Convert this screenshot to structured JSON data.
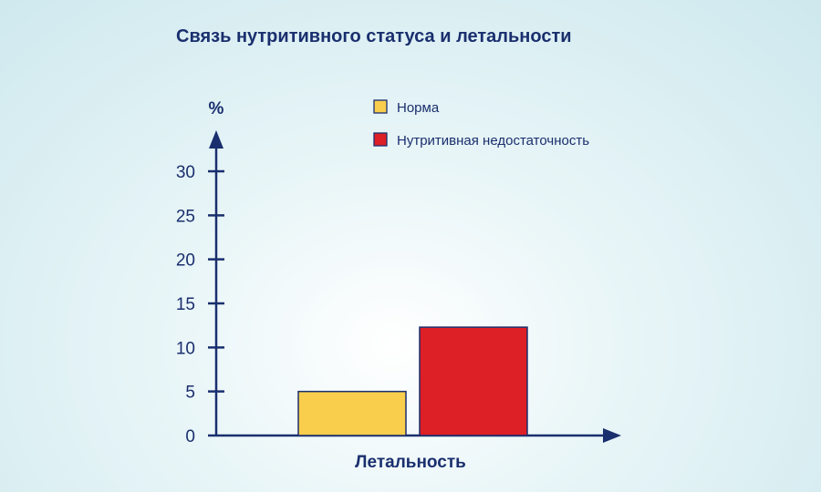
{
  "chart_data": {
    "type": "bar",
    "title": "Связь нутритивного статуса и летальности",
    "xlabel": "Летальность",
    "ylabel": "%",
    "ylim": [
      0,
      30
    ],
    "yticks": [
      0,
      5,
      10,
      15,
      20,
      25,
      30
    ],
    "categories": [
      "Летальность"
    ],
    "series": [
      {
        "name": "Норма",
        "values": [
          5
        ],
        "color": "#f9ce4d"
      },
      {
        "name": "Нутритивная недостаточность",
        "values": [
          12.3
        ],
        "color": "#dd1f26"
      }
    ],
    "legend_position": "top-right",
    "grid": false,
    "axis_color": "#1a2f6e"
  }
}
